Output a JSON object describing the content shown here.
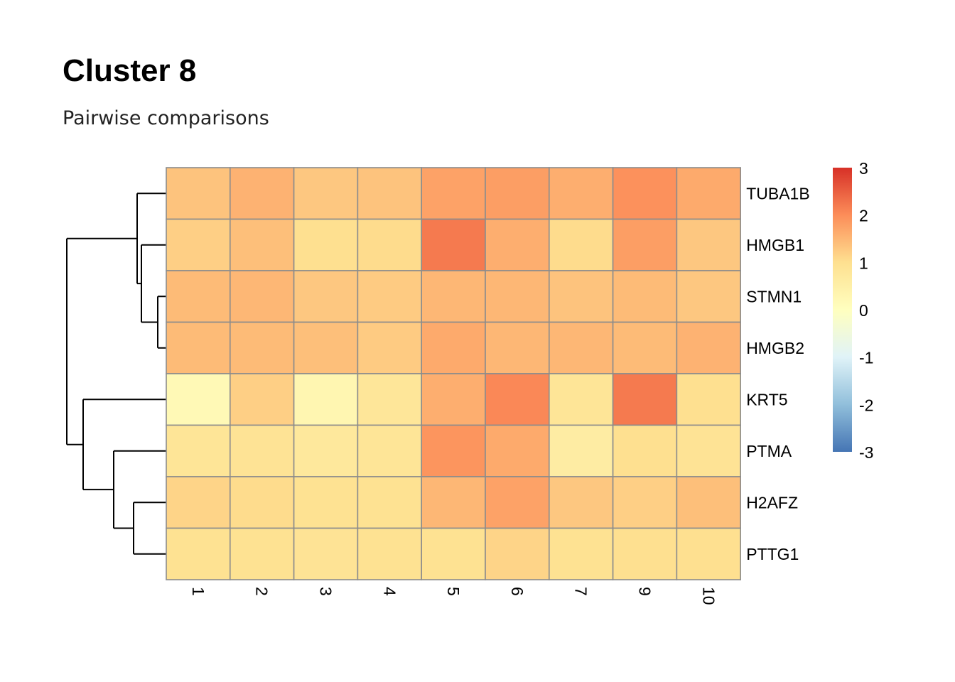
{
  "title": "Cluster 8",
  "subtitle": "Pairwise comparisons",
  "chart_data": {
    "type": "heatmap",
    "rows": [
      "TUBA1B",
      "HMGB1",
      "STMN1",
      "HMGB2",
      "KRT5",
      "PTMA",
      "H2AFZ",
      "PTTG1"
    ],
    "columns": [
      "1",
      "2",
      "3",
      "4",
      "5",
      "6",
      "7",
      "9",
      "10"
    ],
    "values": [
      [
        1.35,
        1.55,
        1.3,
        1.35,
        1.75,
        1.8,
        1.6,
        1.95,
        1.65
      ],
      [
        1.2,
        1.4,
        1.0,
        1.05,
        2.2,
        1.6,
        1.05,
        1.8,
        1.3
      ],
      [
        1.45,
        1.5,
        1.3,
        1.25,
        1.5,
        1.5,
        1.35,
        1.45,
        1.3
      ],
      [
        1.45,
        1.45,
        1.4,
        1.25,
        1.65,
        1.5,
        1.5,
        1.45,
        1.55
      ],
      [
        0.2,
        1.2,
        0.3,
        0.8,
        1.6,
        2.05,
        0.85,
        2.2,
        1.0
      ],
      [
        0.85,
        0.9,
        0.75,
        0.85,
        1.9,
        1.65,
        0.6,
        1.0,
        0.9
      ],
      [
        1.15,
        1.05,
        0.95,
        0.95,
        1.5,
        1.75,
        1.3,
        1.2,
        1.4
      ],
      [
        0.95,
        0.95,
        0.9,
        0.95,
        0.95,
        1.15,
        0.95,
        1.0,
        1.0
      ]
    ],
    "legend": {
      "ticks": [
        3,
        2,
        1,
        0,
        -1,
        -2,
        -3
      ],
      "range": [
        -3,
        3
      ]
    },
    "colors": {
      "scale": [
        "#4575b4",
        "#91bfdb",
        "#e0f3f8",
        "#ffffbf",
        "#fee090",
        "#fc8d59",
        "#d73027"
      ],
      "cell_border": "#8c8c8c",
      "dendrogram": "#000000"
    },
    "row_dendrogram": "left",
    "legend_position": "right"
  }
}
